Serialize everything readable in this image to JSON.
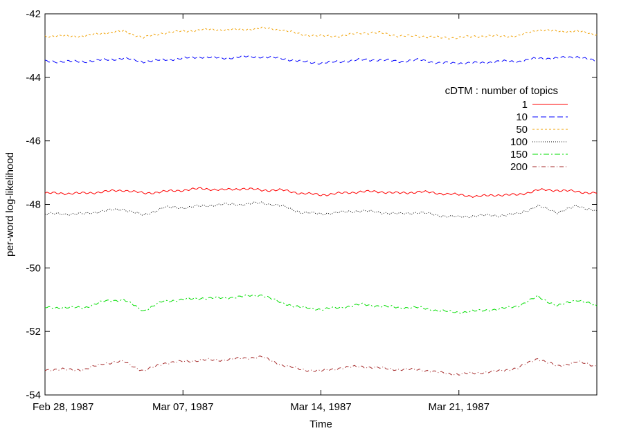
{
  "chart_data": {
    "type": "line",
    "xlabel": "Time",
    "ylabel": "per-word log-likelihood",
    "x_range": [
      "1987-02-28",
      "1987-03-28"
    ],
    "ylim": [
      -54,
      -42
    ],
    "y_ticks": [
      -54,
      -52,
      -50,
      -48,
      -46,
      -44,
      -42
    ],
    "x_ticks": [
      {
        "date": "1987-02-28",
        "label": "Feb 28, 1987"
      },
      {
        "date": "1987-03-07",
        "label": "Mar 07, 1987"
      },
      {
        "date": "1987-03-14",
        "label": "Mar 14, 1987"
      },
      {
        "date": "1987-03-21",
        "label": "Mar 21, 1987"
      }
    ],
    "grid": false,
    "legend": {
      "title": "cDTM : number of topics",
      "placement": "top-right"
    },
    "x": [
      "1987-02-28",
      "1987-03-01",
      "1987-03-02",
      "1987-03-03",
      "1987-03-04",
      "1987-03-05",
      "1987-03-06",
      "1987-03-07",
      "1987-03-08",
      "1987-03-09",
      "1987-03-10",
      "1987-03-11",
      "1987-03-12",
      "1987-03-13",
      "1987-03-14",
      "1987-03-15",
      "1987-03-16",
      "1987-03-17",
      "1987-03-18",
      "1987-03-19",
      "1987-03-20",
      "1987-03-21",
      "1987-03-22",
      "1987-03-23",
      "1987-03-24",
      "1987-03-25",
      "1987-03-26",
      "1987-03-27",
      "1987-03-28"
    ],
    "series": [
      {
        "name": "1",
        "color": "#ff0000",
        "dash": "",
        "values": [
          -47.65,
          -47.65,
          -47.65,
          -47.6,
          -47.55,
          -47.65,
          -47.6,
          -47.55,
          -47.5,
          -47.55,
          -47.5,
          -47.55,
          -47.55,
          -47.65,
          -47.7,
          -47.65,
          -47.6,
          -47.6,
          -47.65,
          -47.6,
          -47.65,
          -47.7,
          -47.75,
          -47.7,
          -47.7,
          -47.55,
          -47.55,
          -47.6,
          -47.65
        ]
      },
      {
        "name": "10",
        "color": "#0000ff",
        "dash": "8,4",
        "values": [
          -43.5,
          -43.5,
          -43.5,
          -43.45,
          -43.4,
          -43.5,
          -43.45,
          -43.4,
          -43.35,
          -43.4,
          -43.35,
          -43.35,
          -43.4,
          -43.5,
          -43.55,
          -43.5,
          -43.45,
          -43.45,
          -43.5,
          -43.45,
          -43.55,
          -43.55,
          -43.55,
          -43.5,
          -43.5,
          -43.4,
          -43.4,
          -43.35,
          -43.5
        ]
      },
      {
        "name": "50",
        "color": "#f0a000",
        "dash": "3,3",
        "values": [
          -42.7,
          -42.7,
          -42.7,
          -42.6,
          -42.55,
          -42.75,
          -42.6,
          -42.55,
          -42.5,
          -42.5,
          -42.5,
          -42.45,
          -42.5,
          -42.65,
          -42.7,
          -42.7,
          -42.6,
          -42.6,
          -42.7,
          -42.7,
          -42.75,
          -42.75,
          -42.7,
          -42.7,
          -42.7,
          -42.5,
          -42.55,
          -42.55,
          -42.65
        ]
      },
      {
        "name": "100",
        "color": "#000000",
        "dash": "1,2",
        "values": [
          -48.3,
          -48.3,
          -48.3,
          -48.2,
          -48.15,
          -48.35,
          -48.1,
          -48.1,
          -48.05,
          -48.0,
          -48.0,
          -47.95,
          -48.05,
          -48.25,
          -48.3,
          -48.25,
          -48.2,
          -48.25,
          -48.3,
          -48.25,
          -48.35,
          -48.4,
          -48.35,
          -48.35,
          -48.3,
          -48.05,
          -48.25,
          -48.05,
          -48.2
        ]
      },
      {
        "name": "150",
        "color": "#00dd00",
        "dash": "8,3,2,3",
        "values": [
          -51.25,
          -51.25,
          -51.25,
          -51.05,
          -51.0,
          -51.35,
          -51.05,
          -51.0,
          -50.95,
          -50.95,
          -50.9,
          -50.85,
          -51.1,
          -51.25,
          -51.3,
          -51.25,
          -51.15,
          -51.2,
          -51.25,
          -51.25,
          -51.35,
          -51.4,
          -51.35,
          -51.3,
          -51.2,
          -50.9,
          -51.2,
          -51.0,
          -51.2
        ]
      },
      {
        "name": "200",
        "color": "#a52a2a",
        "dash": "6,3,1,3",
        "values": [
          -53.2,
          -53.2,
          -53.2,
          -53.0,
          -52.95,
          -53.25,
          -53.0,
          -52.95,
          -52.9,
          -52.9,
          -52.85,
          -52.8,
          -53.05,
          -53.2,
          -53.25,
          -53.15,
          -53.1,
          -53.15,
          -53.2,
          -53.2,
          -53.3,
          -53.35,
          -53.3,
          -53.25,
          -53.15,
          -52.85,
          -53.1,
          -52.95,
          -53.1
        ]
      }
    ]
  }
}
